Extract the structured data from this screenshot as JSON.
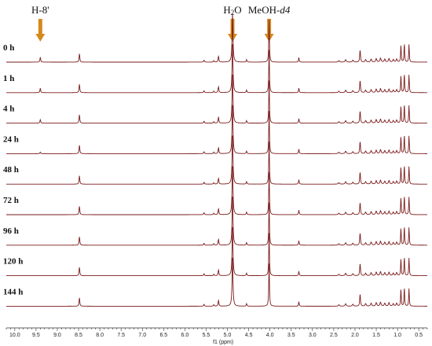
{
  "chart_data": {
    "type": "line",
    "title": "",
    "xlabel": "f1 (ppm)",
    "ylabel": "",
    "x_reversed": true,
    "xlim": [
      10.2,
      0.3
    ],
    "x_ticks": [
      "10.0",
      "9.5",
      "9.0",
      "8.5",
      "8.0",
      "7.5",
      "7.0",
      "6.5",
      "6.0",
      "5.5",
      "5.0",
      "4.5",
      "4.0",
      "3.5",
      "3.0",
      "2.5",
      "2.0",
      "1.5",
      "1.0",
      "0.5"
    ],
    "trace_color": "#7a1a1a",
    "annotation_color": "#d4891e",
    "annotations": [
      {
        "label_main": "H-8'",
        "label_sub": "",
        "label_tail": "",
        "x": 9.4
      },
      {
        "label_main": "H",
        "label_sub": "2",
        "label_tail": "O",
        "x": 4.88
      },
      {
        "label_main": "MeOH-",
        "label_sub": "",
        "label_tail": "d4",
        "x": 4.02
      }
    ],
    "series": [
      {
        "name": "0 h",
        "h8_intensity": 0.1
      },
      {
        "name": "1 h",
        "h8_intensity": 0.09
      },
      {
        "name": "4 h",
        "h8_intensity": 0.07
      },
      {
        "name": "24 h",
        "h8_intensity": 0.03
      },
      {
        "name": "48 h",
        "h8_intensity": 0.0
      },
      {
        "name": "72 h",
        "h8_intensity": 0.0
      },
      {
        "name": "96 h",
        "h8_intensity": 0.0
      },
      {
        "name": "120 h",
        "h8_intensity": 0.0
      },
      {
        "name": "144 h",
        "h8_intensity": 0.0
      }
    ],
    "peaks": [
      {
        "x": 8.48,
        "h": 0.17,
        "w": 0.01
      },
      {
        "x": 5.55,
        "h": 0.04,
        "w": 0.01
      },
      {
        "x": 5.32,
        "h": 0.03,
        "w": 0.01
      },
      {
        "x": 5.21,
        "h": 0.12,
        "w": 0.01
      },
      {
        "x": 4.88,
        "h": 1.0,
        "w": 0.012
      },
      {
        "x": 4.55,
        "h": 0.05,
        "w": 0.01
      },
      {
        "x": 4.02,
        "h": 0.85,
        "w": 0.009
      },
      {
        "x": 3.32,
        "h": 0.09,
        "w": 0.009
      },
      {
        "x": 2.38,
        "h": 0.03,
        "w": 0.015
      },
      {
        "x": 2.22,
        "h": 0.05,
        "w": 0.015
      },
      {
        "x": 2.05,
        "h": 0.04,
        "w": 0.015
      },
      {
        "x": 1.88,
        "h": 0.25,
        "w": 0.01
      },
      {
        "x": 1.75,
        "h": 0.05,
        "w": 0.015
      },
      {
        "x": 1.62,
        "h": 0.06,
        "w": 0.015
      },
      {
        "x": 1.5,
        "h": 0.07,
        "w": 0.015
      },
      {
        "x": 1.4,
        "h": 0.08,
        "w": 0.015
      },
      {
        "x": 1.3,
        "h": 0.06,
        "w": 0.015
      },
      {
        "x": 1.2,
        "h": 0.07,
        "w": 0.015
      },
      {
        "x": 1.1,
        "h": 0.05,
        "w": 0.015
      },
      {
        "x": 1.02,
        "h": 0.06,
        "w": 0.015
      },
      {
        "x": 0.92,
        "h": 0.35,
        "w": 0.008
      },
      {
        "x": 0.84,
        "h": 0.38,
        "w": 0.008
      },
      {
        "x": 0.73,
        "h": 0.36,
        "w": 0.008
      }
    ]
  }
}
